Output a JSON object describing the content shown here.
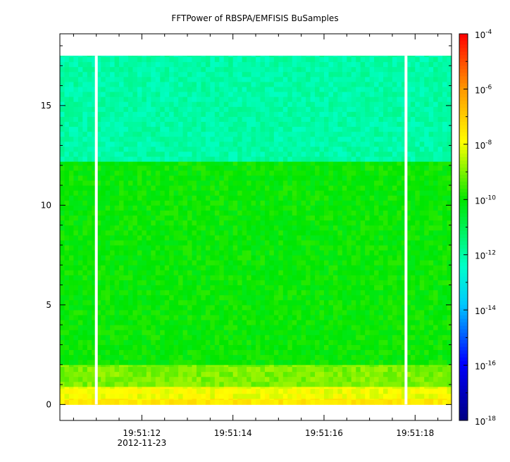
{
  "chart_data": {
    "type": "heatmap",
    "title": "FFTPower of RBSPA/EMFISIS  BuSamples",
    "xlabel": "",
    "ylabel": "",
    "x_axis": {
      "kind": "time",
      "tick_labels": [
        "19:51:12",
        "19:51:14",
        "19:51:16",
        "19:51:18"
      ],
      "date_label": "2012-11-23",
      "range": [
        "19:51:10.2",
        "19:51:18.8"
      ]
    },
    "y_axis": {
      "ticks": [
        0,
        5,
        10,
        15
      ],
      "ylim": [
        -0.8,
        18.6
      ]
    },
    "colorbar": {
      "scale": "log",
      "range": [
        1e-18,
        0.0001
      ],
      "tick_values": [
        0.0001,
        1e-06,
        1e-08,
        1e-10,
        1e-12,
        1e-14,
        1e-16,
        1e-18
      ],
      "tick_base": "10",
      "tick_exponents": [
        "-4",
        "-6",
        "-8",
        "-10",
        "-12",
        "-14",
        "-16",
        "-18"
      ]
    },
    "data_extent": {
      "y_range": [
        0,
        17.5
      ],
      "gaps_at_time": [
        "19:51:11.0",
        "19:51:17.8"
      ]
    },
    "bands": [
      {
        "y_from": 0.0,
        "y_to": 0.3,
        "power": 3e-08
      },
      {
        "y_from": 0.3,
        "y_to": 0.9,
        "power": 1e-08
      },
      {
        "y_from": 0.9,
        "y_to": 2.0,
        "power": 1e-09
      },
      {
        "y_from": 2.0,
        "y_to": 12.2,
        "power": 1e-10
      },
      {
        "y_from": 12.2,
        "y_to": 17.5,
        "power": 1e-12
      }
    ],
    "grid": false
  }
}
